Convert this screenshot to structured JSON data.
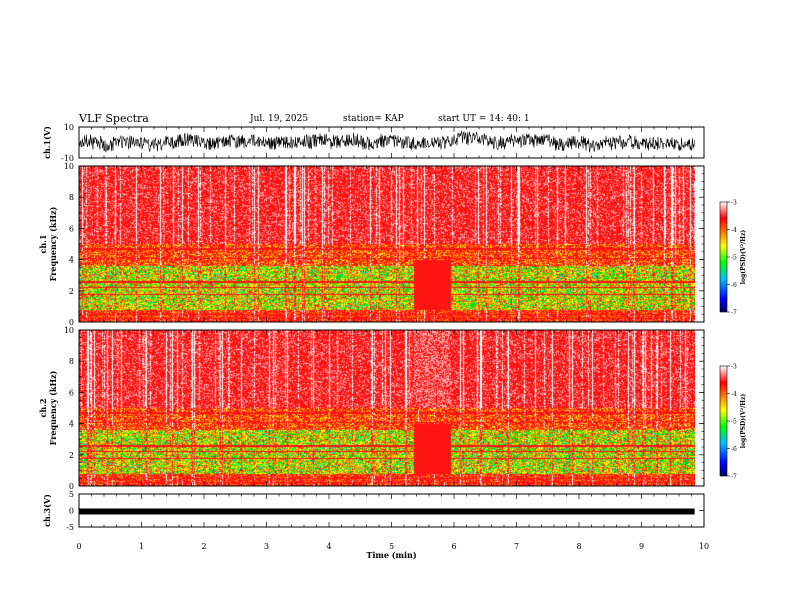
{
  "header": {
    "title": "VLF Spectra",
    "date": "Jul. 19, 2025",
    "station": "station= KAP",
    "start": "start UT =   14: 40: 1"
  },
  "chart_data": {
    "type": "spectrogram",
    "xlabel": "Time (min)",
    "xlim": [
      0,
      10
    ],
    "xticks": [
      "0",
      "1",
      "2",
      "3",
      "4",
      "5",
      "6",
      "7",
      "8",
      "9",
      "10"
    ],
    "data_end_min": 9.85,
    "panels": [
      {
        "id": "ch1-waveform",
        "type": "line",
        "ylabel": "ch.1(V)",
        "ylim": [
          -10,
          10
        ],
        "yticks": [
          "10",
          "-10"
        ],
        "description_values": {
          "typical_range_v": [
            -6,
            6
          ]
        }
      },
      {
        "id": "ch1-spectrogram",
        "type": "heatmap",
        "ylabel_line1": "ch.1",
        "ylabel_line2": "Frequency (kHz)",
        "ylim": [
          0,
          10
        ],
        "yticks": [
          "0",
          "2",
          "4",
          "6",
          "8",
          "10"
        ],
        "colorbar": {
          "label": "log(PSD)(V²/Hz)",
          "range": [
            -7,
            -3
          ],
          "ticks": [
            "-3",
            "-4",
            "-5",
            "-6",
            "-7"
          ]
        }
      },
      {
        "id": "ch2-spectrogram",
        "type": "heatmap",
        "ylabel_line1": "ch.2",
        "ylabel_line2": "Frequency (kHz)",
        "ylim": [
          0,
          10
        ],
        "yticks": [
          "0",
          "2",
          "4",
          "6",
          "8",
          "10"
        ],
        "colorbar": {
          "label": "log(PSD)(V²/Hz)",
          "range": [
            -7,
            -3
          ],
          "ticks": [
            "-3",
            "-4",
            "-5",
            "-6",
            "-7"
          ]
        }
      },
      {
        "id": "ch3-waveform",
        "type": "line",
        "ylabel": "ch.3(V)",
        "ylim": [
          -5,
          5
        ],
        "yticks": [
          "5",
          "0",
          "-5"
        ],
        "description_values": {
          "level_v": -0.3
        }
      }
    ],
    "interval_features_min": [
      5.35,
      5.95
    ]
  }
}
